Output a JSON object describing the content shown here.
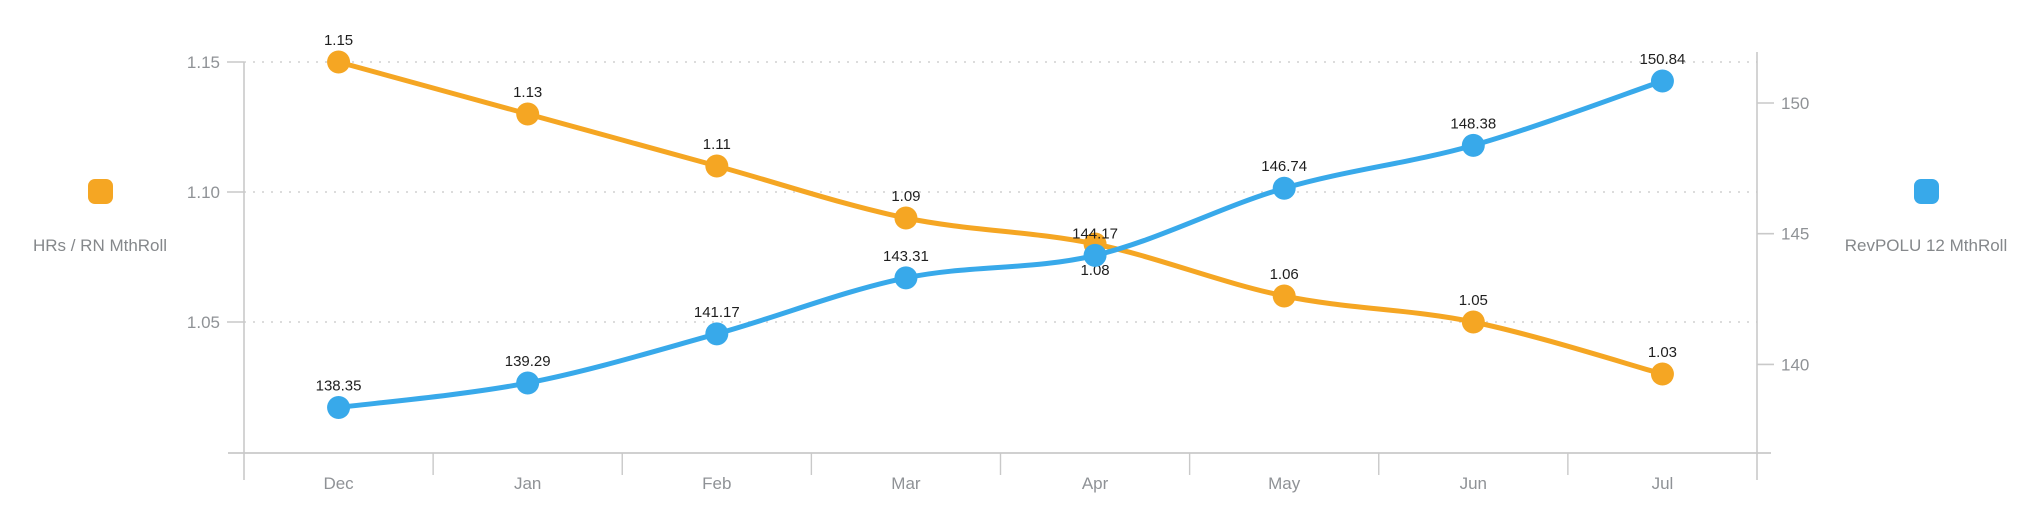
{
  "legend_left": {
    "label": "HRs / RN MthRoll",
    "color": "#F5A623"
  },
  "legend_right": {
    "label": "RevPOLU 12 MthRoll",
    "color": "#38A9EA"
  },
  "chart_data": {
    "type": "line",
    "categories": [
      "Dec",
      "Jan",
      "Feb",
      "Mar",
      "Apr",
      "May",
      "Jun",
      "Jul"
    ],
    "series": [
      {
        "name": "HRs / RN MthRoll",
        "axis": "left",
        "color": "#F5A623",
        "values": [
          1.15,
          1.13,
          1.11,
          1.09,
          1.08,
          1.06,
          1.05,
          1.03
        ],
        "labels": [
          "1.15",
          "1.13",
          "1.11",
          "1.09",
          "1.08",
          "1.06",
          "1.05",
          "1.03"
        ],
        "labels_below": [
          4
        ]
      },
      {
        "name": "RevPOLU 12 MthRoll",
        "axis": "right",
        "color": "#38A9EA",
        "values": [
          138.35,
          139.29,
          141.17,
          143.31,
          144.17,
          146.74,
          148.38,
          150.84
        ],
        "labels": [
          "138.35",
          "139.29",
          "141.17",
          "143.31",
          "144.17",
          "146.74",
          "148.38",
          "150.84"
        ],
        "labels_below": []
      }
    ],
    "axes": {
      "left": {
        "ticks": [
          1.15,
          1.1,
          1.05
        ],
        "tick_labels": [
          "1.15",
          "1.10",
          "1.05"
        ],
        "gridlines": true,
        "range_hint": [
          1.0,
          1.17
        ]
      },
      "right": {
        "ticks": [
          150,
          145,
          140
        ],
        "tick_labels": [
          "150",
          "145",
          "140"
        ],
        "gridlines": false,
        "range_hint": [
          136.5,
          152
        ]
      }
    },
    "grid": "dotted-horizontal",
    "legend_position": "outside-left-and-right",
    "title": "",
    "xlabel": "",
    "ylabel_left": "HRs / RN MthRoll",
    "ylabel_right": "RevPOLU 12 MthRoll"
  }
}
